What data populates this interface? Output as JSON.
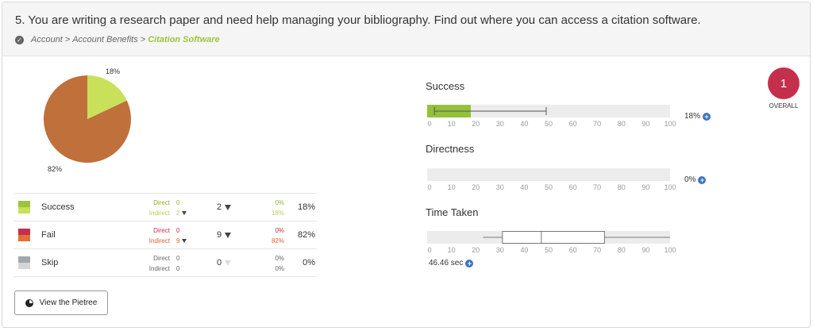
{
  "question": {
    "title": "5. You are writing a research paper and need help managing your bibliography. Find out where you can access a citation software.",
    "breadcrumb": [
      "Account",
      "Account Benefits",
      "Citation Software"
    ]
  },
  "pie": {
    "success_label": "18%",
    "fail_label": "82%",
    "colors": {
      "success": "#c8e05a",
      "fail": "#c0703b"
    }
  },
  "results": [
    {
      "name": "Success",
      "direct_label": "Direct",
      "indirect_label": "Indirect",
      "direct": "0",
      "indirect": "2",
      "total": "2",
      "direct_pct": "0%",
      "indirect_pct": "18%",
      "pct": "18%"
    },
    {
      "name": "Fail",
      "direct_label": "Direct",
      "indirect_label": "Indirect",
      "direct": "0",
      "indirect": "9",
      "total": "9",
      "direct_pct": "0%",
      "indirect_pct": "82%",
      "pct": "82%"
    },
    {
      "name": "Skip",
      "direct_label": "Direct",
      "indirect_label": "Indirect",
      "direct": "0",
      "indirect": "0",
      "total": "0",
      "direct_pct": "0%",
      "indirect_pct": "0%",
      "pct": "0%"
    }
  ],
  "pietree_button": "View the Pietree",
  "axis_ticks": [
    "0",
    "10",
    "20",
    "30",
    "40",
    "50",
    "60",
    "70",
    "80",
    "90",
    "100"
  ],
  "metrics": {
    "success": {
      "title": "Success",
      "value": 18,
      "value_label": "18%",
      "whisker": [
        3,
        49
      ]
    },
    "directness": {
      "title": "Directness",
      "value": 0,
      "value_label": "0%"
    },
    "time_taken": {
      "title": "Time Taken",
      "value_label": "46.46 sec",
      "box": {
        "min": 23,
        "q1": 31,
        "median": 47,
        "q3": 73,
        "max": 100
      }
    }
  },
  "overall": {
    "score": "1",
    "label": "OVERALL"
  },
  "colors": {
    "success": "#93c13a",
    "fail": "#c4304b",
    "plus": "#3a76c4"
  }
}
